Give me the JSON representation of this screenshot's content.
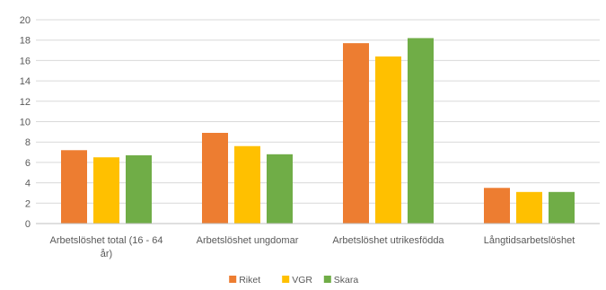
{
  "chart_data": {
    "type": "bar",
    "title": "",
    "xlabel": "",
    "ylabel": "",
    "ylim": [
      0,
      20
    ],
    "yticks": [
      0,
      2,
      4,
      6,
      8,
      10,
      12,
      14,
      16,
      18,
      20
    ],
    "grid": true,
    "legend_position": "bottom",
    "categories": [
      [
        "Arbetslöshet total (16 - 64",
        "år)"
      ],
      [
        "Arbetslöshet ungdomar"
      ],
      [
        "Arbetslöshet utrikesfödda"
      ],
      [
        "Långtidsarbetslöshet"
      ]
    ],
    "series": [
      {
        "name": "Riket",
        "color": "#ed7d31",
        "values": [
          7.2,
          8.9,
          17.7,
          3.5
        ]
      },
      {
        "name": "VGR",
        "color": "#ffc000",
        "values": [
          6.5,
          7.6,
          16.4,
          3.1
        ]
      },
      {
        "name": "Skara",
        "color": "#70ad47",
        "values": [
          6.7,
          6.8,
          18.2,
          3.1
        ]
      }
    ]
  }
}
